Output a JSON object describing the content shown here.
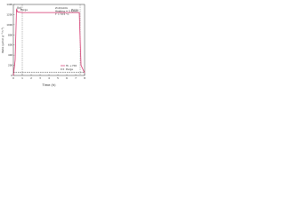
{
  "chart_data": {
    "type": "line",
    "title": "(b)",
    "x_label": "Time (h)",
    "y_label": "Rate (μmol g⁻¹ h⁻¹)",
    "x": [
      0,
      0.2,
      0.35,
      0.5,
      1,
      2,
      3,
      4,
      5,
      6,
      7,
      7.4,
      7.6,
      8
    ],
    "series": [
      {
        "name": "H₂ + HCl",
        "color": "#d6336c",
        "dash": false,
        "values": [
          0,
          300,
          1300,
          1250,
          1240,
          1240,
          1240,
          1240,
          1240,
          1240,
          1240,
          1240,
          200,
          50
        ]
      },
      {
        "name": "Purge",
        "color": "#222222",
        "dash": true,
        "values": [
          60,
          60,
          60,
          60,
          60,
          60,
          60,
          60,
          60,
          60,
          60,
          60,
          60,
          60
        ]
      }
    ],
    "markers_x": [
      1,
      7.5
    ],
    "annotations": [
      "ZnO/Al₂O₃",
      "Heating = 5 K/min",
      "T = 573 °C",
      "Purge",
      "Purge"
    ],
    "xlim": [
      0,
      8
    ],
    "xticks": [
      0,
      1,
      2,
      3,
      4,
      5,
      6,
      7,
      8
    ],
    "ylim": [
      0,
      1400
    ],
    "yticks": [
      0,
      200,
      400,
      600,
      800,
      1000,
      1200,
      1400
    ],
    "grid": false
  }
}
